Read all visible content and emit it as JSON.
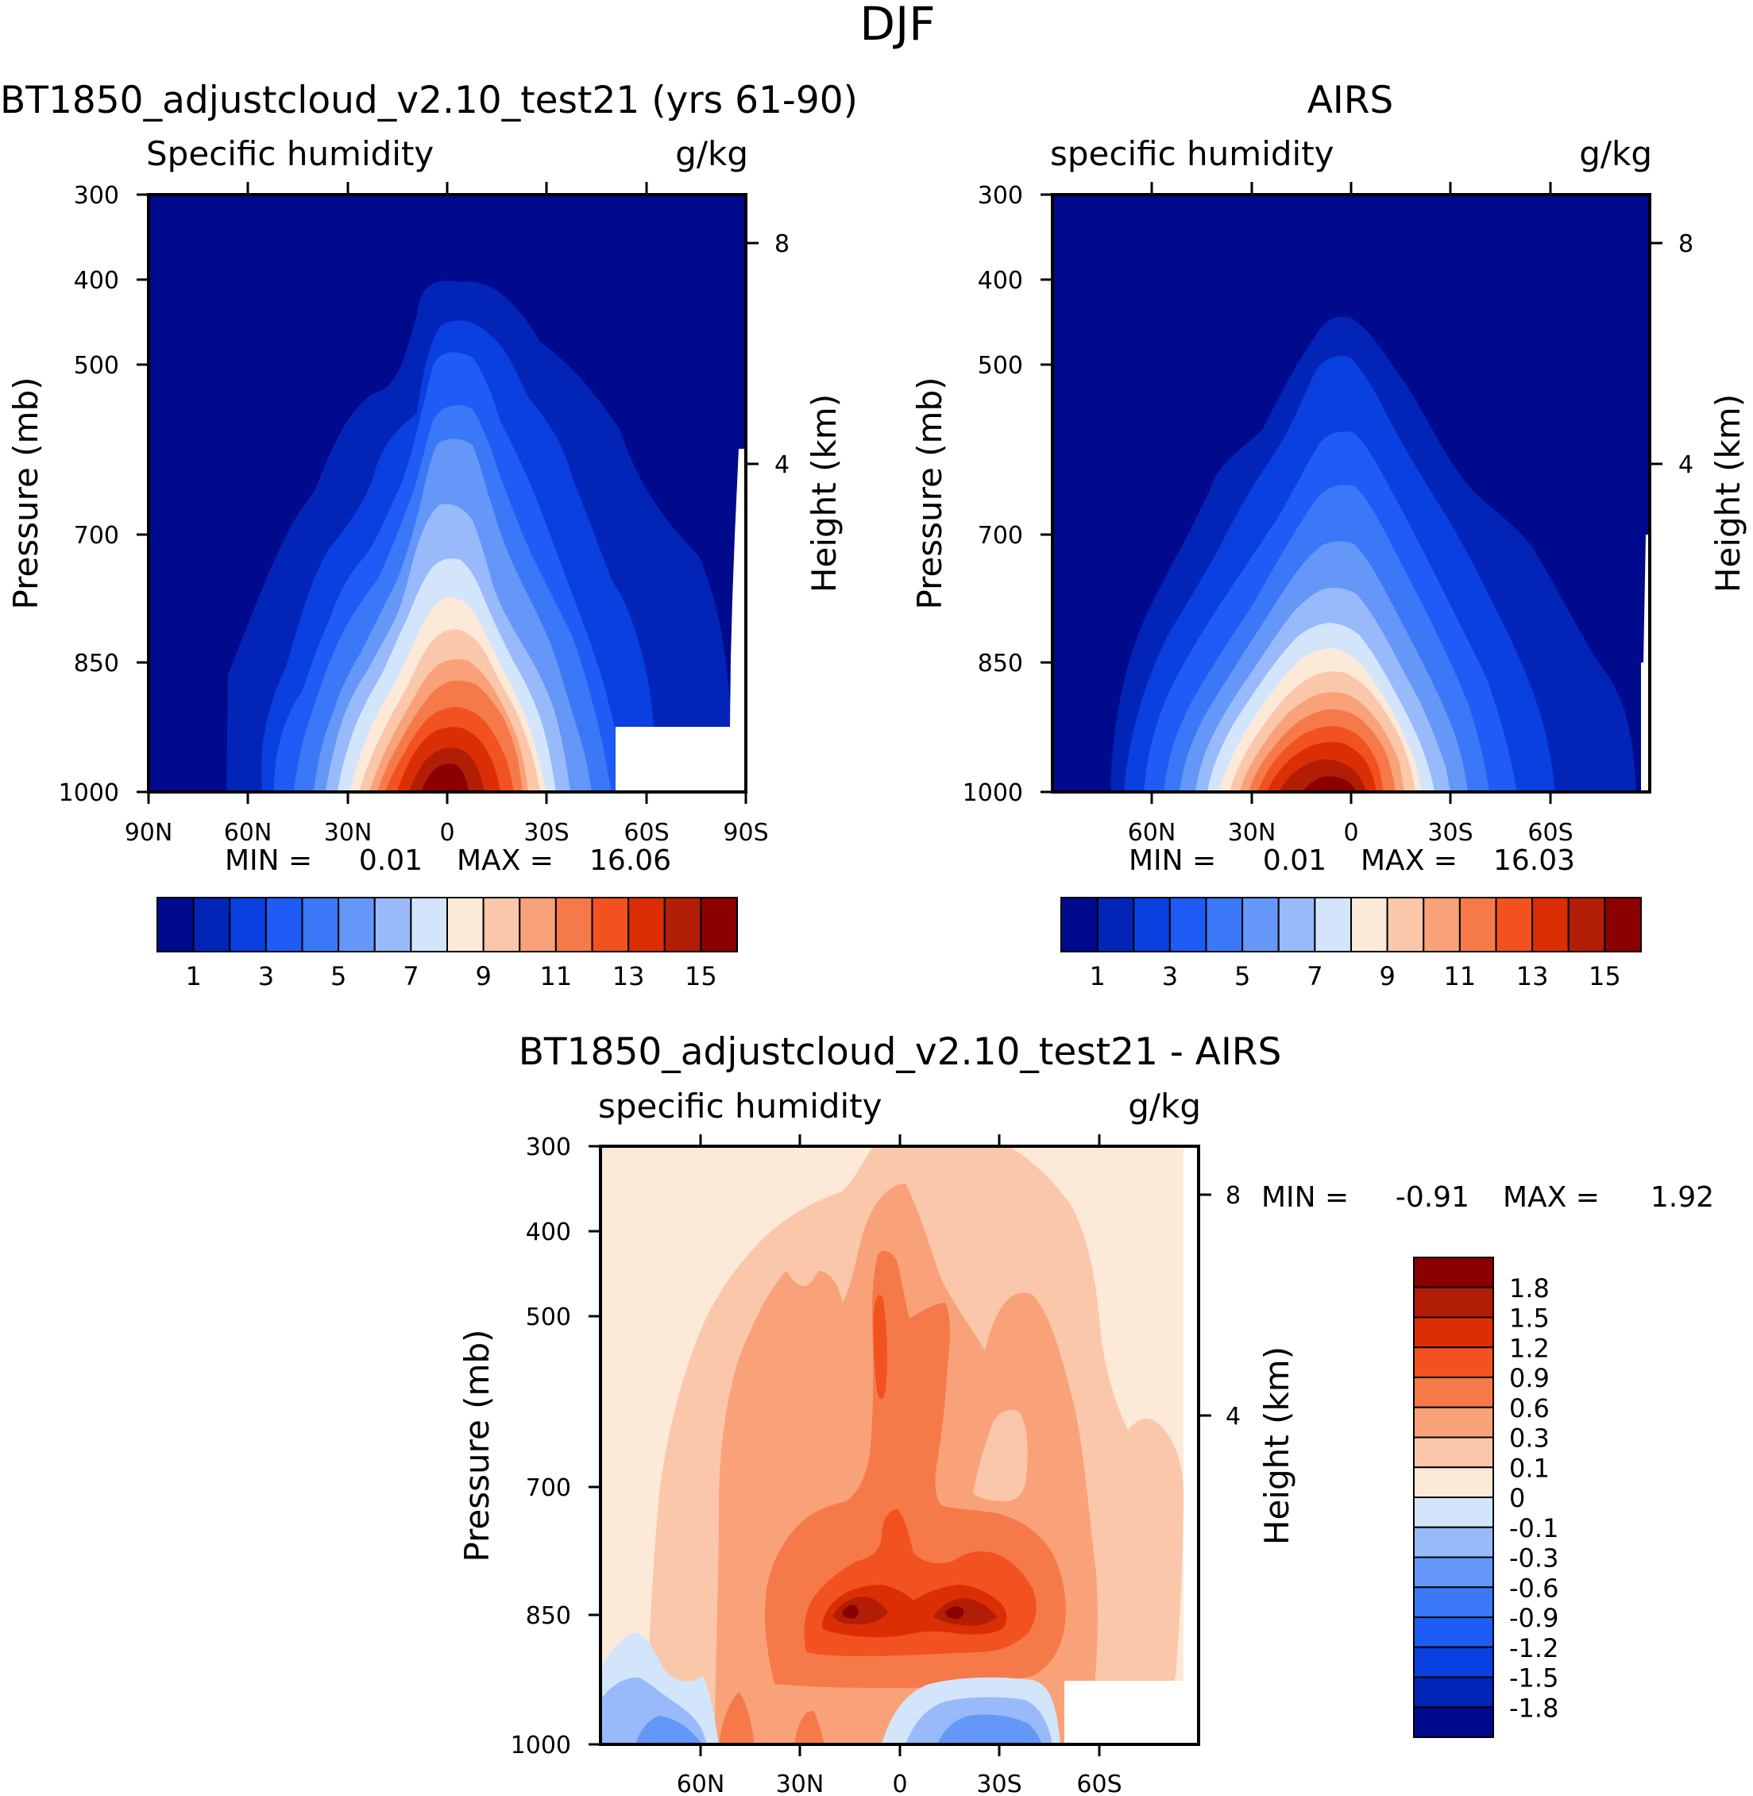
{
  "page_title": "DJF",
  "colors": {
    "seq": [
      "#000a8c",
      "#0225b8",
      "#0a3fe0",
      "#1f5cf5",
      "#3a78f7",
      "#6497f7",
      "#99bafa",
      "#d2e5fb",
      "#fde9d8",
      "#fbc7aa",
      "#f9a27a",
      "#f67a49",
      "#f2521f",
      "#dc2e05",
      "#b21d05",
      "#8a0000"
    ],
    "div": [
      "#000a8c",
      "#0225b8",
      "#0a3fe0",
      "#1f5cf5",
      "#3a78f7",
      "#6497f7",
      "#99bafa",
      "#d2e5fb",
      "#fde9d8",
      "#fbc7aa",
      "#f9a27a",
      "#f67a49",
      "#f2521f",
      "#dc2e05",
      "#b21d05",
      "#8a0000"
    ]
  },
  "chart_data": [
    {
      "type": "contour",
      "name": "model",
      "title": "BT1850_adjustcloud_v2.10_test21 (yrs 61-90)",
      "left_label": "Specific humidity",
      "right_label": "g/kg",
      "ylabel": "Pressure (mb)",
      "y2label": "Height (km)",
      "y_ticks": [
        "300",
        "400",
        "500",
        "700",
        "850",
        "1000"
      ],
      "y_tick_values": [
        300,
        400,
        500,
        700,
        850,
        1000
      ],
      "y2_ticks": [
        "8",
        "4"
      ],
      "x_ticks": [
        "90N",
        "60N",
        "30N",
        "0",
        "30S",
        "60S",
        "90S"
      ],
      "min_label": "MIN =",
      "min_value": "0.01",
      "max_label": "MAX =",
      "max_value": "16.06",
      "levels": [
        1,
        2,
        3,
        4,
        5,
        6,
        7,
        8,
        9,
        10,
        11,
        12,
        13,
        14,
        15
      ],
      "colorbar_labels": [
        "1",
        "3",
        "5",
        "7",
        "9",
        "11",
        "13",
        "15"
      ]
    },
    {
      "type": "contour",
      "name": "obs",
      "title": "AIRS",
      "left_label": "specific humidity",
      "right_label": "g/kg",
      "ylabel": "Pressure (mb)",
      "y2label": "Height (km)",
      "y_ticks": [
        "300",
        "400",
        "500",
        "700",
        "850",
        "1000"
      ],
      "y_tick_values": [
        300,
        400,
        500,
        700,
        850,
        1000
      ],
      "y2_ticks": [
        "8",
        "4"
      ],
      "x_ticks": [
        "60N",
        "30N",
        "0",
        "30S",
        "60S"
      ],
      "min_label": "MIN =",
      "min_value": "0.01",
      "max_label": "MAX =",
      "max_value": "16.03",
      "levels": [
        1,
        2,
        3,
        4,
        5,
        6,
        7,
        8,
        9,
        10,
        11,
        12,
        13,
        14,
        15
      ],
      "colorbar_labels": [
        "1",
        "3",
        "5",
        "7",
        "9",
        "11",
        "13",
        "15"
      ]
    },
    {
      "type": "contour",
      "name": "diff",
      "title": "BT1850_adjustcloud_v2.10_test21 - AIRS",
      "left_label": "specific humidity",
      "right_label": "g/kg",
      "ylabel": "Pressure (mb)",
      "y2label": "Height (km)",
      "y_ticks": [
        "300",
        "400",
        "500",
        "700",
        "850",
        "1000"
      ],
      "y_tick_values": [
        300,
        400,
        500,
        700,
        850,
        1000
      ],
      "y2_ticks": [
        "8",
        "4"
      ],
      "x_ticks": [
        "60N",
        "30N",
        "0",
        "30S",
        "60S"
      ],
      "min_label": "MIN =",
      "min_value": "-0.91",
      "max_label": "MAX =",
      "max_value": "1.92",
      "levels": [
        -1.8,
        -1.5,
        -1.2,
        -0.9,
        -0.6,
        -0.3,
        -0.1,
        0,
        0.1,
        0.3,
        0.6,
        0.9,
        1.2,
        1.5,
        1.8
      ],
      "colorbar_labels": [
        "1.8",
        "1.5",
        "1.2",
        "0.9",
        "0.6",
        "0.3",
        "0.1",
        "0",
        "-0.1",
        "-0.3",
        "-0.6",
        "-0.9",
        "-1.2",
        "-1.5",
        "-1.8"
      ]
    }
  ]
}
